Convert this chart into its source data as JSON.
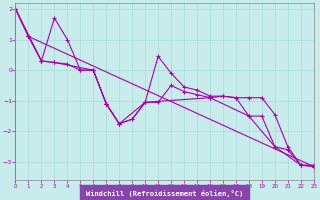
{
  "xlabel": "Windchill (Refroidissement éolien,°C)",
  "xlim": [
    0,
    23
  ],
  "ylim": [
    -3.6,
    2.2
  ],
  "xticks": [
    0,
    1,
    2,
    3,
    4,
    5,
    6,
    7,
    8,
    9,
    10,
    11,
    12,
    13,
    14,
    15,
    16,
    17,
    18,
    19,
    20,
    21,
    22,
    23
  ],
  "yticks": [
    -3,
    -2,
    -1,
    0,
    1,
    2
  ],
  "background_color": "#c8ecec",
  "grid_color": "#a8d8d8",
  "line_color": "#aa00aa",
  "xlabel_bg": "#8844aa",
  "series1": [
    [
      0,
      2.0
    ],
    [
      1,
      1.1
    ],
    [
      2,
      0.3
    ],
    [
      3,
      1.7
    ],
    [
      4,
      1.0
    ],
    [
      5,
      0.0
    ],
    [
      6,
      0.0
    ],
    [
      7,
      -1.1
    ],
    [
      8,
      -1.75
    ],
    [
      9,
      -1.6
    ],
    [
      10,
      -1.05
    ],
    [
      11,
      0.45
    ],
    [
      12,
      -0.1
    ],
    [
      13,
      -0.55
    ],
    [
      14,
      -0.65
    ],
    [
      15,
      -0.85
    ],
    [
      16,
      -0.85
    ],
    [
      17,
      -0.9
    ],
    [
      18,
      -0.9
    ],
    [
      19,
      -0.9
    ],
    [
      20,
      -1.45
    ],
    [
      21,
      -2.5
    ],
    [
      22,
      -3.1
    ],
    [
      23,
      -3.15
    ]
  ],
  "series2": [
    [
      0,
      2.0
    ],
    [
      1,
      1.1
    ],
    [
      2,
      0.3
    ],
    [
      3,
      0.25
    ],
    [
      4,
      0.2
    ],
    [
      5,
      0.0
    ],
    [
      6,
      0.0
    ],
    [
      7,
      -1.1
    ],
    [
      8,
      -1.75
    ],
    [
      9,
      -1.6
    ],
    [
      10,
      -1.05
    ],
    [
      11,
      -1.05
    ],
    [
      12,
      -0.5
    ],
    [
      13,
      -0.7
    ],
    [
      14,
      -0.8
    ],
    [
      15,
      -0.9
    ],
    [
      16,
      -0.85
    ],
    [
      17,
      -0.9
    ],
    [
      18,
      -1.5
    ],
    [
      19,
      -1.5
    ],
    [
      20,
      -2.5
    ],
    [
      21,
      -2.6
    ],
    [
      22,
      -3.1
    ],
    [
      23,
      -3.1
    ]
  ],
  "series3": [
    [
      0,
      2.0
    ],
    [
      2,
      0.3
    ],
    [
      3,
      0.25
    ],
    [
      6,
      0.0
    ],
    [
      7,
      -1.1
    ],
    [
      8,
      -1.75
    ],
    [
      10,
      -1.05
    ],
    [
      15,
      -0.9
    ],
    [
      18,
      -1.5
    ],
    [
      20,
      -2.5
    ],
    [
      22,
      -3.1
    ],
    [
      23,
      -3.15
    ]
  ],
  "series4": [
    [
      0,
      2.0
    ],
    [
      1,
      1.1
    ],
    [
      23,
      -3.15
    ]
  ]
}
